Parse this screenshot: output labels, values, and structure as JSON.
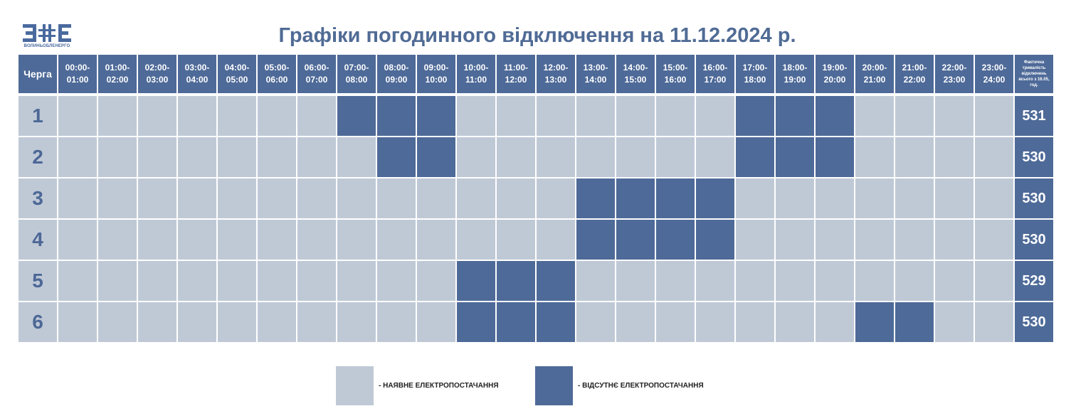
{
  "logo": {
    "mark": "ВОЕ",
    "caption": "ВОЛИНЬОБЛЕНЕРГО",
    "brand_color": "#4a6a9e"
  },
  "title": "Графіки погодинного відключення на 11.12.2024 р.",
  "colors": {
    "header": "#4e6a98",
    "on": "#bfc9d6",
    "off": "#4e6a98",
    "queue_text": "#4d6896"
  },
  "table": {
    "queue_header": "Черга",
    "hours": [
      [
        "00:00-",
        "01:00"
      ],
      [
        "01:00-",
        "02:00"
      ],
      [
        "02:00-",
        "03:00"
      ],
      [
        "03:00-",
        "04:00"
      ],
      [
        "04:00-",
        "05:00"
      ],
      [
        "05:00-",
        "06:00"
      ],
      [
        "06:00-",
        "07:00"
      ],
      [
        "07:00-",
        "08:00"
      ],
      [
        "08:00-",
        "09:00"
      ],
      [
        "09:00-",
        "10:00"
      ],
      [
        "10:00-",
        "11:00"
      ],
      [
        "11:00-",
        "12:00"
      ],
      [
        "12:00-",
        "13:00"
      ],
      [
        "13:00-",
        "14:00"
      ],
      [
        "14:00-",
        "15:00"
      ],
      [
        "15:00-",
        "16:00"
      ],
      [
        "16:00-",
        "17:00"
      ],
      [
        "17:00-",
        "18:00"
      ],
      [
        "18:00-",
        "19:00"
      ],
      [
        "19:00-",
        "20:00"
      ],
      [
        "20:00-",
        "21:00"
      ],
      [
        "21:00-",
        "22:00"
      ],
      [
        "22:00-",
        "23:00"
      ],
      [
        "23:00-",
        "24:00"
      ]
    ],
    "total_header_lines": [
      "Фактична",
      "тривалість",
      "відключень",
      "всього з 16.05,",
      "год."
    ],
    "rows": [
      {
        "queue": "1",
        "off_hours": [
          7,
          8,
          9,
          17,
          18,
          19
        ],
        "total": "531"
      },
      {
        "queue": "2",
        "off_hours": [
          8,
          9,
          17,
          18,
          19
        ],
        "total": "530"
      },
      {
        "queue": "3",
        "off_hours": [
          13,
          14,
          15,
          16
        ],
        "total": "530"
      },
      {
        "queue": "4",
        "off_hours": [
          13,
          14,
          15,
          16
        ],
        "total": "530"
      },
      {
        "queue": "5",
        "off_hours": [
          10,
          11,
          12
        ],
        "total": "529"
      },
      {
        "queue": "6",
        "off_hours": [
          10,
          11,
          12,
          20,
          21
        ],
        "total": "530"
      }
    ]
  },
  "legend": {
    "on_label": "- НАЯВНЕ ЕЛЕКТРОПОСТАЧАННЯ",
    "off_label": "- ВІДСУТНЄ ЕЛЕКТРОПОСТАЧАННЯ"
  }
}
